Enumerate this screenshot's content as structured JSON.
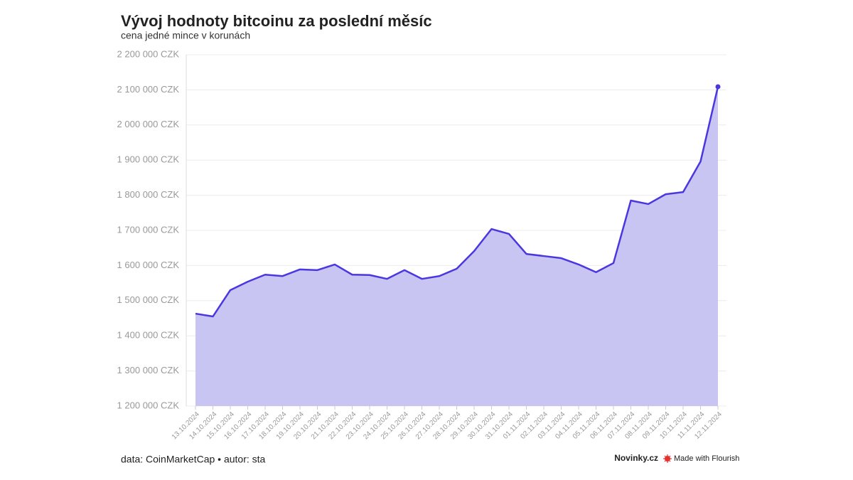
{
  "chart_data": {
    "type": "area",
    "title": "Vývoj hodnoty bitcoinu za poslední měsíc",
    "subtitle": "cena jedné mince v korunách",
    "categories": [
      "13.10.2024",
      "14.10.2024",
      "15.10.2024",
      "16.10.2024",
      "17.10.2024",
      "18.10.2024",
      "19.10.2024",
      "20.10.2024",
      "21.10.2024",
      "22.10.2024",
      "23.10.2024",
      "24.10.2024",
      "25.10.2024",
      "26.10.2024",
      "27.10.2024",
      "28.10.2024",
      "29.10.2024",
      "30.10.2024",
      "31.10.2024",
      "01.11.2024",
      "02.11.2024",
      "03.11.2024",
      "04.11.2024",
      "05.11.2024",
      "06.11.2024",
      "07.11.2024",
      "08.11.2024",
      "09.11.2024",
      "10.11.2024",
      "11.11.2024",
      "12.11.2024"
    ],
    "values": [
      1463000,
      1455000,
      1530000,
      1554000,
      1574000,
      1570000,
      1589000,
      1587000,
      1603000,
      1574000,
      1573000,
      1562000,
      1587000,
      1562000,
      1570000,
      1591000,
      1641000,
      1704000,
      1690000,
      1633000,
      1627000,
      1621000,
      1603000,
      1581000,
      1607000,
      1785000,
      1775000,
      1803000,
      1809000,
      1896000,
      2109000
    ],
    "color": "#4b37e0",
    "fill_color": "#c8c5f3",
    "ylim": [
      1200000,
      2200000
    ],
    "yticks": [
      {
        "value": 1200000,
        "label": "1 200 000 CZK"
      },
      {
        "value": 1300000,
        "label": "1 300 000 CZK"
      },
      {
        "value": 1400000,
        "label": "1 400 000 CZK"
      },
      {
        "value": 1500000,
        "label": "1 500 000 CZK"
      },
      {
        "value": 1600000,
        "label": "1 600 000 CZK"
      },
      {
        "value": 1700000,
        "label": "1 700 000 CZK"
      },
      {
        "value": 1800000,
        "label": "1 800 000 CZK"
      },
      {
        "value": 1900000,
        "label": "1 900 000 CZK"
      },
      {
        "value": 2000000,
        "label": "2 000 000 CZK"
      },
      {
        "value": 2100000,
        "label": "2 100 000 CZK"
      },
      {
        "value": 2200000,
        "label": "2 200 000 CZK"
      }
    ],
    "grid": true,
    "source": "data: CoinMarketCap • autor: sta",
    "brand": "Novinky.cz",
    "credit": "Made with Flourish"
  }
}
